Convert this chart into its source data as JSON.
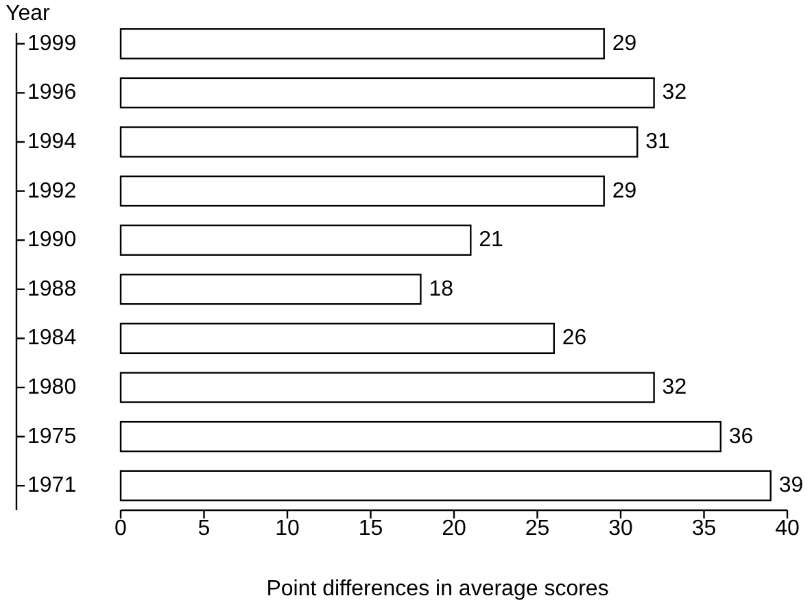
{
  "chart_data": {
    "type": "bar",
    "orientation": "horizontal",
    "ylabel": "Year",
    "xlabel": "Point differences in average scores",
    "categories": [
      "1999",
      "1996",
      "1994",
      "1992",
      "1990",
      "1988",
      "1984",
      "1980",
      "1975",
      "1971"
    ],
    "values": [
      29,
      32,
      31,
      29,
      21,
      18,
      26,
      32,
      36,
      39
    ],
    "color": "#ffffff",
    "xlim": [
      0,
      40
    ],
    "xticks": [
      0,
      5,
      10,
      15,
      20,
      25,
      30,
      35,
      40
    ],
    "data_labels": true
  }
}
